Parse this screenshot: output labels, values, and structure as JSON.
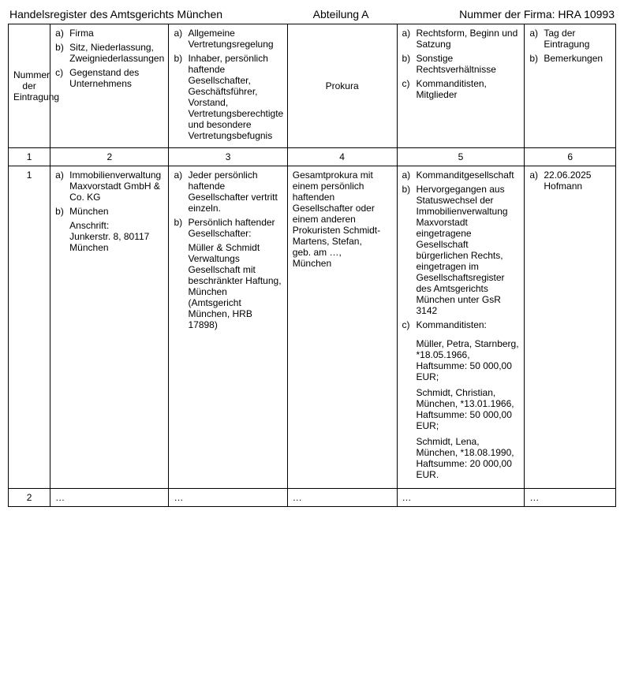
{
  "header": {
    "left": "Handelsregister des Amtsgerichts München",
    "center": "Abteilung A",
    "right": "Nummer der Firma: HRA 10993"
  },
  "headrow": {
    "col1": "Nummer der Eintragung",
    "col2": {
      "a": "Firma",
      "b": "Sitz, Niederlassung, Zweigniederlassungen",
      "c": "Gegenstand des Unternehmens"
    },
    "col3": {
      "a": "Allgemeine Vertretungsregelung",
      "b": "Inhaber, persönlich haftende Gesellschafter, Geschäftsführer, Vorstand, Vertretungsberechtigte und besondere Vertretungsbefugnis"
    },
    "col4": "Prokura",
    "col5": {
      "a": "Rechtsform, Beginn und Satzung",
      "b": "Sonstige Rechtsverhältnisse",
      "c": "Kommanditisten, Mitglieder"
    },
    "col6": {
      "a": "Tag der Eintragung",
      "b": "Bemerkungen"
    }
  },
  "numrow": {
    "c1": "1",
    "c2": "2",
    "c3": "3",
    "c4": "4",
    "c5": "5",
    "c6": "6"
  },
  "row1": {
    "num": "1",
    "col2": {
      "a": "Immobilienverwaltung Maxvorstadt GmbH & Co. KG",
      "b1": "München",
      "b2": "Anschrift:",
      "b3": "Junkerstr. 8, 80117 München"
    },
    "col3": {
      "a": "Jeder persönlich haftende Gesellschafter vertritt einzeln.",
      "b1": "Persönlich haftender Gesellschafter:",
      "b2": "Müller & Schmidt Verwaltungs Gesellschaft mit beschränkter Haftung, München (Amtsgericht München, HRB 17898)"
    },
    "col4": "Gesamtprokura mit einem persönlich haftenden Gesellschafter oder einem anderen Prokuristen Schmidt-Martens, Stefan,\ngeb. am …,\nMünchen",
    "col5": {
      "a": "Kommanditgesellschaft",
      "b": "Hervorgegangen aus Statuswechsel der Immobilienverwaltung Maxvorstadt eingetragene Gesellschaft bürgerlichen Rechts, eingetragen im Gesellschaftsregister des Amtsgerichts München unter GsR 3142",
      "c_label": "Kommanditisten:",
      "k1": "Müller, Petra, Starnberg, *18.05.1966, Haftsumme: 50 000,00 EUR;",
      "k2": "Schmidt, Christian, München, *13.01.1966, Haftsumme: 50 000,00 EUR;",
      "k3": "Schmidt, Lena, München, *18.08.1990, Haftsumme: 20 000,00 EUR."
    },
    "col6": {
      "a": "22.06.2025 Hofmann"
    }
  },
  "row2": {
    "num": "2",
    "ell": "…"
  }
}
